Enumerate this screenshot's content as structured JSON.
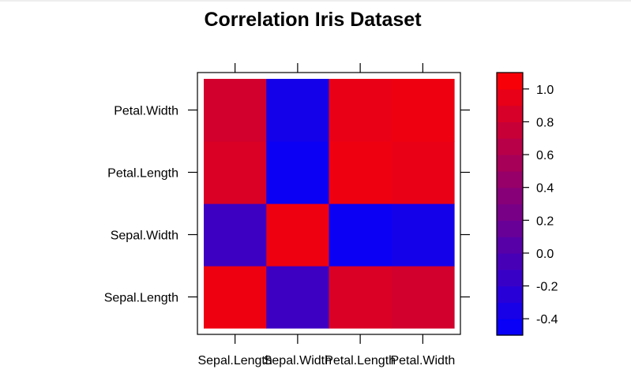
{
  "chart_data": {
    "type": "heatmap",
    "title": "Correlation Iris Dataset",
    "xlabel": "",
    "ylabel": "",
    "x_categories": [
      "Sepal.Length",
      "Sepal.Width",
      "Petal.Length",
      "Petal.Width"
    ],
    "y_categories": [
      "Sepal.Length",
      "Sepal.Width",
      "Petal.Length",
      "Petal.Width"
    ],
    "values": [
      [
        1.0,
        -0.12,
        0.87,
        0.82
      ],
      [
        -0.12,
        1.0,
        -0.43,
        -0.37
      ],
      [
        0.87,
        -0.43,
        1.0,
        0.96
      ],
      [
        0.82,
        -0.37,
        0.96,
        1.0
      ]
    ],
    "colorbar": {
      "range": [
        -0.5,
        1.1
      ],
      "tick_values": [
        -0.4,
        -0.2,
        0.0,
        0.2,
        0.4,
        0.6,
        0.8,
        1.0
      ],
      "tick_labels": [
        "-0.4",
        "-0.2",
        "0.0",
        "0.2",
        "0.4",
        "0.6",
        "0.8",
        "1.0"
      ],
      "low_color": "#0000ff",
      "high_color": "#ff0000"
    },
    "grid": false,
    "legend_position": "right"
  }
}
